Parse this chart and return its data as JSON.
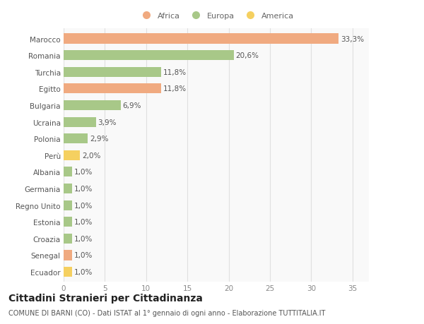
{
  "categories": [
    "Marocco",
    "Romania",
    "Turchia",
    "Egitto",
    "Bulgaria",
    "Ucraina",
    "Polonia",
    "Perù",
    "Albania",
    "Germania",
    "Regno Unito",
    "Estonia",
    "Croazia",
    "Senegal",
    "Ecuador"
  ],
  "values": [
    33.3,
    20.6,
    11.8,
    11.8,
    6.9,
    3.9,
    2.9,
    2.0,
    1.0,
    1.0,
    1.0,
    1.0,
    1.0,
    1.0,
    1.0
  ],
  "labels": [
    "33,3%",
    "20,6%",
    "11,8%",
    "11,8%",
    "6,9%",
    "3,9%",
    "2,9%",
    "2,0%",
    "1,0%",
    "1,0%",
    "1,0%",
    "1,0%",
    "1,0%",
    "1,0%",
    "1,0%"
  ],
  "colors": [
    "#f0aa80",
    "#a8c888",
    "#a8c888",
    "#f0aa80",
    "#a8c888",
    "#a8c888",
    "#a8c888",
    "#f5d060",
    "#a8c888",
    "#a8c888",
    "#a8c888",
    "#a8c888",
    "#a8c888",
    "#f0aa80",
    "#f5d060"
  ],
  "legend_labels": [
    "Africa",
    "Europa",
    "America"
  ],
  "legend_colors": [
    "#f0aa80",
    "#a8c888",
    "#f5d060"
  ],
  "title": "Cittadini Stranieri per Cittadinanza",
  "subtitle": "COMUNE DI BARNI (CO) - Dati ISTAT al 1° gennaio di ogni anno - Elaborazione TUTTITALIA.IT",
  "xlim": [
    0,
    37
  ],
  "xticks": [
    0,
    5,
    10,
    15,
    20,
    25,
    30,
    35
  ],
  "bg_color": "#f9f9f9",
  "plot_bg_color": "#f5f5f5",
  "grid_color": "#e0e0e0",
  "bar_height": 0.6,
  "label_fontsize": 7.5,
  "tick_fontsize": 7.5,
  "title_fontsize": 10,
  "subtitle_fontsize": 7
}
